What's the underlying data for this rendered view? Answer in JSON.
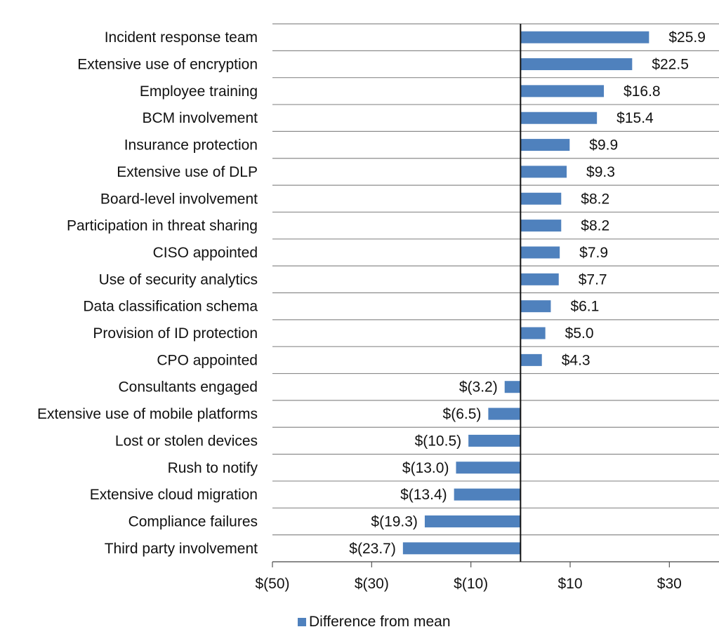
{
  "chart_data": {
    "type": "bar",
    "orientation": "horizontal",
    "categories": [
      "Incident response team",
      "Extensive use of encryption",
      "Employee training",
      "BCM involvement",
      "Insurance protection",
      "Extensive use of DLP",
      "Board-level involvement",
      "Participation in threat sharing",
      "CISO appointed",
      "Use of security analytics",
      "Data classification schema",
      "Provision of ID protection",
      "CPO appointed",
      "Consultants engaged",
      "Extensive use of mobile platforms",
      "Lost or stolen devices",
      "Rush to notify",
      "Extensive cloud migration",
      "Compliance failures",
      "Third party involvement"
    ],
    "series": [
      {
        "name": "Difference from mean",
        "values": [
          25.9,
          22.5,
          16.8,
          15.4,
          9.9,
          9.3,
          8.2,
          8.2,
          7.9,
          7.7,
          6.1,
          5.0,
          4.3,
          -3.2,
          -6.5,
          -10.5,
          -13.0,
          -13.4,
          -19.3,
          -23.7
        ],
        "labels": [
          "$25.9",
          "$22.5",
          "$16.8",
          "$15.4",
          "$9.9",
          "$9.3",
          "$8.2",
          "$8.2",
          "$7.9",
          "$7.7",
          "$6.1",
          "$5.0",
          "$4.3",
          "$(3.2)",
          "$(6.5)",
          "$(10.5)",
          "$(13.0)",
          "$(13.4)",
          "$(19.3)",
          "$(23.7)"
        ]
      }
    ],
    "xlim": [
      -50,
      40
    ],
    "x_ticks": [
      -50,
      -30,
      -10,
      10,
      30
    ],
    "x_tick_labels": [
      "$(50)",
      "$(30)",
      "$(10)",
      "$10",
      "$30"
    ],
    "grid": "horizontal",
    "legend": "bottom",
    "bar_color": "#4f81bd"
  },
  "legend": {
    "label": "Difference from mean",
    "color": "#4f81bd"
  }
}
